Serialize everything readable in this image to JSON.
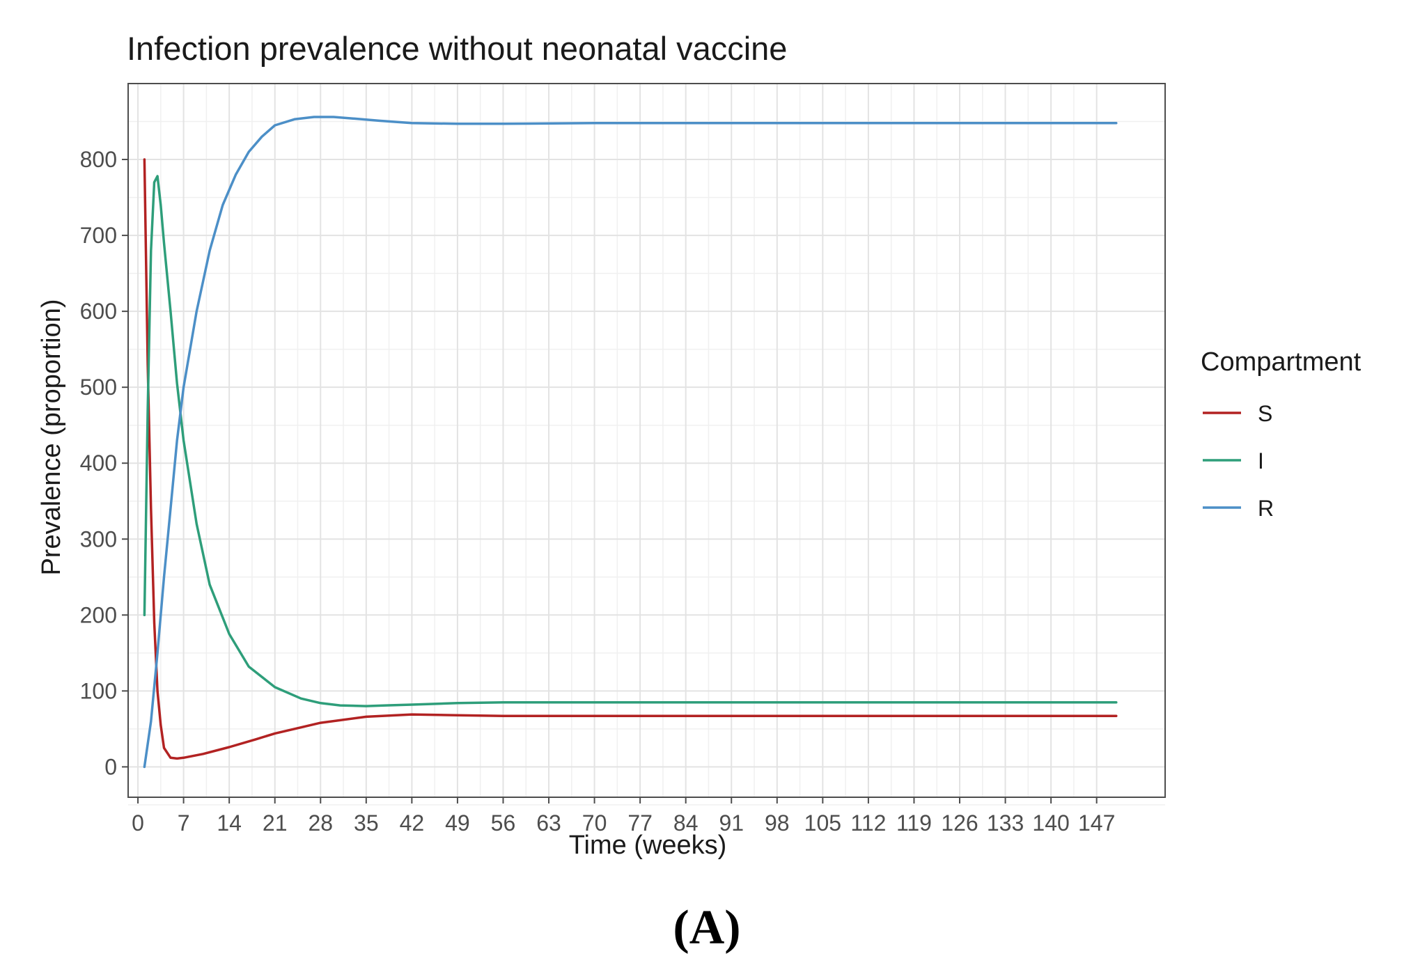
{
  "chart_data": {
    "type": "line",
    "title": "Infection prevalence without neonatal vaccine",
    "xlabel": "Time (weeks)",
    "ylabel": "Prevalence (proportion)",
    "xlim": [
      -1.5,
      157.5
    ],
    "ylim": [
      -40,
      900
    ],
    "x_ticks": [
      0,
      7,
      14,
      21,
      28,
      35,
      42,
      49,
      56,
      63,
      70,
      77,
      84,
      91,
      98,
      105,
      112,
      119,
      126,
      133,
      140,
      147
    ],
    "x_tick_labels": [
      "0",
      "7",
      "14",
      "21",
      "28",
      "35",
      "42",
      "49",
      "56",
      "63",
      "70",
      "77",
      "84",
      "91",
      "98",
      "105",
      "112",
      "119",
      "126",
      "133",
      "140",
      "147"
    ],
    "y_ticks": [
      0,
      100,
      200,
      300,
      400,
      500,
      600,
      700,
      800
    ],
    "y_tick_labels": [
      "0",
      "100",
      "200",
      "300",
      "400",
      "500",
      "600",
      "700",
      "800"
    ],
    "grid": true,
    "legend": {
      "title": "Compartment",
      "position": "right",
      "entries": [
        "S",
        "I",
        "R"
      ]
    },
    "series": [
      {
        "name": "S",
        "color": "#b22222",
        "x": [
          1,
          1.5,
          2,
          2.5,
          3,
          3.5,
          4,
          5,
          6,
          7,
          10,
          14,
          18,
          21,
          25,
          28,
          35,
          42,
          49,
          56,
          63,
          70,
          84,
          98,
          112,
          126,
          140,
          150
        ],
        "y": [
          800,
          530,
          340,
          190,
          100,
          55,
          25,
          12,
          11,
          12,
          17,
          26,
          36,
          44,
          52,
          58,
          66,
          69,
          68,
          67,
          67,
          67,
          67,
          67,
          67,
          67,
          67,
          67
        ]
      },
      {
        "name": "I",
        "color": "#2e9e7a",
        "x": [
          1,
          1.5,
          2,
          2.5,
          3,
          3.5,
          4,
          5,
          6,
          7,
          9,
          11,
          14,
          17,
          21,
          25,
          28,
          31,
          35,
          38,
          42,
          49,
          56,
          70,
          84,
          98,
          112,
          126,
          140,
          150
        ],
        "y": [
          200,
          470,
          680,
          770,
          778,
          740,
          690,
          600,
          505,
          430,
          320,
          240,
          175,
          132,
          105,
          90,
          84,
          81,
          80,
          81,
          82,
          84,
          85,
          85,
          85,
          85,
          85,
          85,
          85,
          85
        ]
      },
      {
        "name": "R",
        "color": "#4c8fc7",
        "x": [
          1,
          2,
          3,
          4,
          5,
          6,
          7,
          9,
          11,
          13,
          15,
          17,
          19,
          21,
          24,
          27,
          30,
          33,
          37,
          42,
          49,
          56,
          70,
          84,
          98,
          112,
          126,
          140,
          150
        ],
        "y": [
          0,
          60,
          150,
          250,
          340,
          430,
          500,
          600,
          680,
          740,
          780,
          810,
          830,
          845,
          853,
          856,
          856,
          854,
          851,
          848,
          847,
          847,
          848,
          848,
          848,
          848,
          848,
          848,
          848
        ]
      }
    ],
    "panel_label": "(A)"
  }
}
